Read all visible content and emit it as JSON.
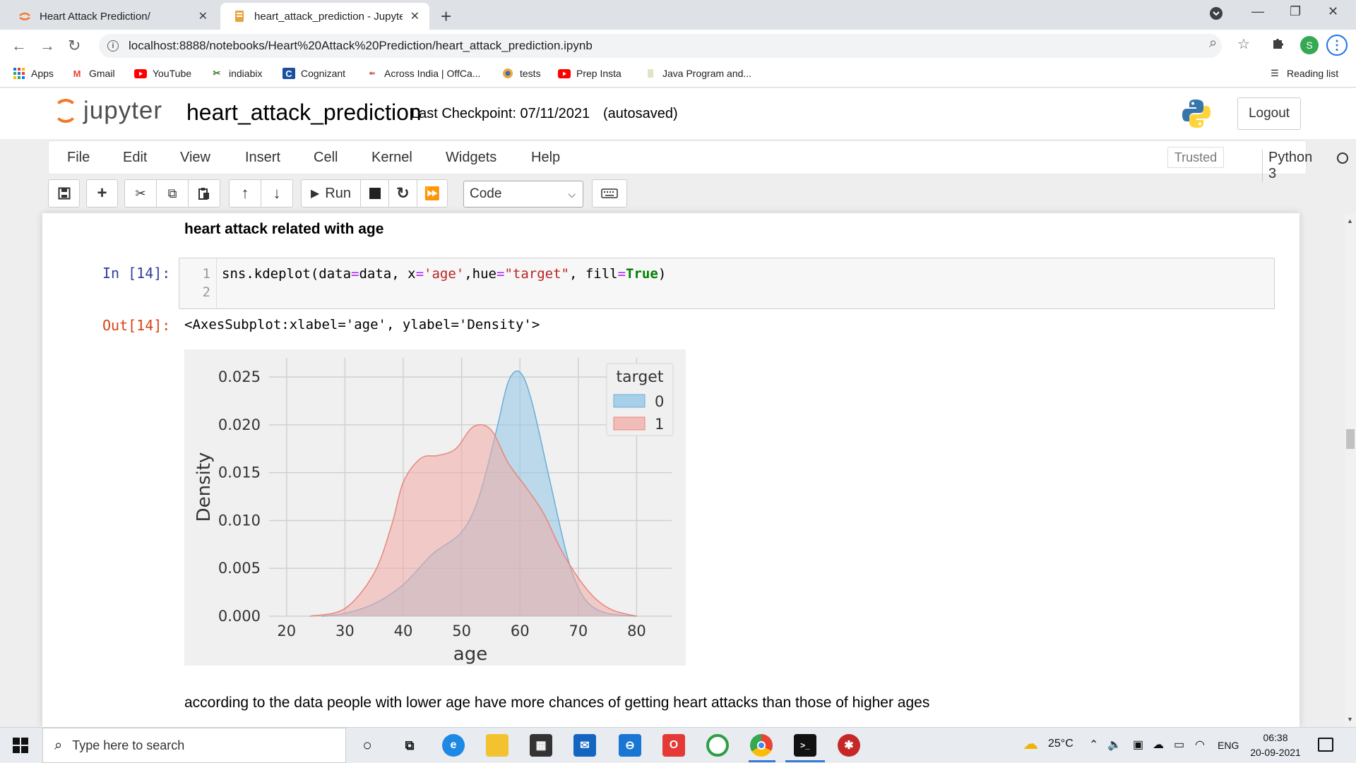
{
  "browser": {
    "tabs": [
      {
        "title": "Heart Attack Prediction/",
        "active": false,
        "icon": "jupyter-icon"
      },
      {
        "title": "heart_attack_prediction - Jupyter",
        "active": true,
        "icon": "notebook-icon"
      }
    ],
    "url": "localhost:8888/notebooks/Heart%20Attack%20Prediction/heart_attack_prediction.ipynb",
    "profile_initial": "S",
    "bookmarks": [
      {
        "label": "Apps",
        "icon": "apps-grid-icon"
      },
      {
        "label": "Gmail",
        "icon": "gmail-icon"
      },
      {
        "label": "YouTube",
        "icon": "youtube-icon"
      },
      {
        "label": "indiabix",
        "icon": "indiabix-icon"
      },
      {
        "label": "Cognizant",
        "icon": "cognizant-icon"
      },
      {
        "label": "Across India | OffCa...",
        "icon": "offcampus-icon"
      },
      {
        "label": "tests",
        "icon": "tests-icon"
      },
      {
        "label": "Prep Insta",
        "icon": "prepinsta-icon"
      },
      {
        "label": "Java Program and...",
        "icon": "java-icon"
      }
    ],
    "reading_list": "Reading list"
  },
  "jupyter": {
    "logo_text": "jupyter",
    "notebook_name": "heart_attack_prediction",
    "checkpoint": "Last Checkpoint: 07/11/2021",
    "autosaved": "(autosaved)",
    "logout": "Logout",
    "menu": [
      "File",
      "Edit",
      "View",
      "Insert",
      "Cell",
      "Kernel",
      "Widgets",
      "Help"
    ],
    "trusted": "Trusted",
    "kernel": "Python 3",
    "toolbar": {
      "run_label": "Run",
      "cell_type": "Code"
    }
  },
  "notebook": {
    "heading": "heart attack related with age",
    "in_prompt": "In [14]:",
    "line_numbers": [
      "1",
      "2"
    ],
    "code": {
      "prefix": "sns.kdeplot(data",
      "eq1": "=",
      "part2": "data, x",
      "eq2": "=",
      "str1": "'age'",
      "part3": ",hue",
      "eq3": "=",
      "str2": "\"target\"",
      "part4": ", fill",
      "eq4": "=",
      "kw": "True",
      "suffix": ")"
    },
    "out_prompt": "Out[14]:",
    "out_text": "<AxesSubplot:xlabel='age', ylabel='Density'>",
    "conclusion": "according to the data people with lower age have more chances of getting heart attacks than those of higher ages"
  },
  "chart_data": {
    "type": "area",
    "xlabel": "age",
    "ylabel": "Density",
    "xlim": [
      17,
      86
    ],
    "ylim": [
      0,
      0.027
    ],
    "xticks": [
      "20",
      "30",
      "40",
      "50",
      "60",
      "70",
      "80"
    ],
    "yticks": [
      "0.000",
      "0.005",
      "0.010",
      "0.015",
      "0.020",
      "0.025"
    ],
    "grid": true,
    "legend_title": "target",
    "legend_placement": "top-right",
    "series": [
      {
        "name": "0",
        "color": "#8fc6e6",
        "x": [
          26,
          30,
          35,
          40,
          45,
          50,
          53,
          56,
          58,
          60,
          62,
          65,
          68,
          70,
          72,
          75,
          80
        ],
        "y": [
          0.0,
          0.0003,
          0.0013,
          0.0033,
          0.0065,
          0.0088,
          0.0125,
          0.0195,
          0.0245,
          0.0255,
          0.0225,
          0.0145,
          0.0065,
          0.003,
          0.0012,
          0.0003,
          0.0
        ]
      },
      {
        "name": "1",
        "color": "#f2aca5",
        "x": [
          24,
          30,
          35,
          38,
          40,
          43,
          46,
          49,
          52,
          55,
          58,
          61,
          64,
          67,
          70,
          73,
          76,
          80
        ],
        "y": [
          0.0,
          0.0008,
          0.0045,
          0.0095,
          0.014,
          0.0165,
          0.0168,
          0.0175,
          0.0198,
          0.0195,
          0.016,
          0.0135,
          0.0108,
          0.007,
          0.004,
          0.0018,
          0.0006,
          0.0
        ]
      }
    ]
  },
  "taskbar": {
    "search_placeholder": "Type here to search",
    "weather": "25°C",
    "language": "ENG",
    "time": "06:38",
    "date": "20-09-2021"
  }
}
